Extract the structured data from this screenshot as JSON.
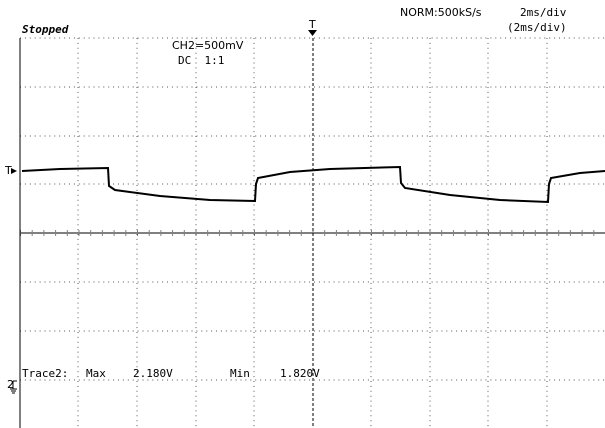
{
  "header": {
    "status": "Stopped",
    "sample_rate": "NORM:500kS/s",
    "timebase": "2ms/div",
    "timebase_zoom": "(2ms/div)"
  },
  "channel": {
    "scale": "CH2=500mV",
    "coupling": "DC  1:1"
  },
  "markers": {
    "trigger_position": "T",
    "trigger_level": "T",
    "ground": "2"
  },
  "measurement": {
    "trace": "Trace2:",
    "max_label": "Max",
    "max_value": "2.180V",
    "min_label": "Min",
    "min_value": "1.820V"
  }
}
